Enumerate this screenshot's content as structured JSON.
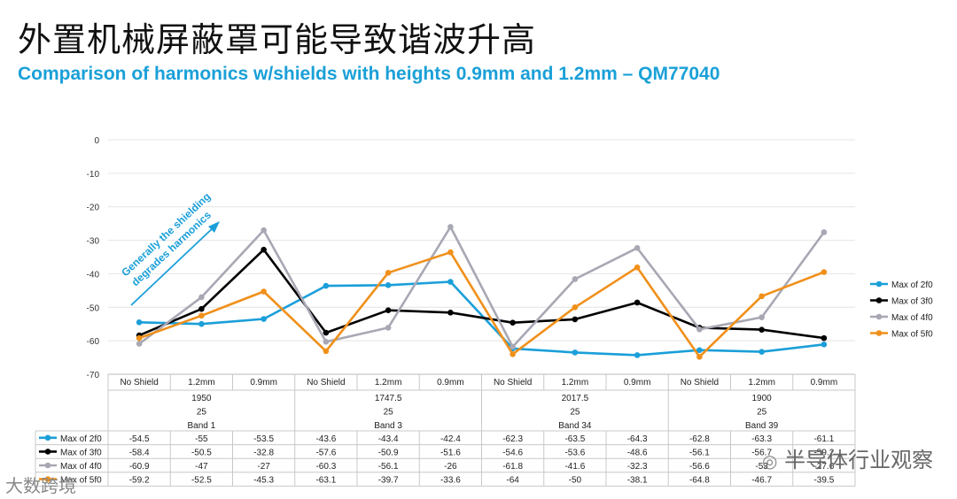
{
  "header": {
    "title": "外置机械屏蔽罩可能导致谐波升高",
    "subtitle": "Comparison of harmonics w/shields with heights 0.9mm and 1.2mm – QM77040"
  },
  "annotation": {
    "line1": "Generally the shielding",
    "line2": "degrades harmonics"
  },
  "watermarks": {
    "right": "半导体行业观察",
    "left": "大数跨境"
  },
  "chart_data": {
    "type": "line",
    "ylim": [
      -70,
      0
    ],
    "yticks": [
      0,
      -10,
      -20,
      -30,
      -40,
      -50,
      -60,
      -70
    ],
    "grid": true,
    "legend": "right",
    "categories": [
      "No Shield",
      "1.2mm",
      "0.9mm",
      "No Shield",
      "1.2mm",
      "0.9mm",
      "No Shield",
      "1.2mm",
      "0.9mm",
      "No Shield",
      "1.2mm",
      "0.9mm"
    ],
    "groups": [
      {
        "lines": [
          "1950",
          "25",
          "Band 1"
        ]
      },
      {
        "lines": [
          "1747.5",
          "25",
          "Band 3"
        ]
      },
      {
        "lines": [
          "2017.5",
          "25",
          "Band 34"
        ]
      },
      {
        "lines": [
          "1900",
          "25",
          "Band 39"
        ]
      }
    ],
    "series": [
      {
        "name": "Max of 2f0",
        "color": "#1a9fd9",
        "values": [
          -54.5,
          -55,
          -53.5,
          -43.6,
          -43.4,
          -42.4,
          -62.3,
          -63.5,
          -64.3,
          -62.8,
          -63.3,
          -61.1
        ]
      },
      {
        "name": "Max of 3f0",
        "color": "#000000",
        "values": [
          -58.4,
          -50.5,
          -32.8,
          -57.6,
          -50.9,
          -51.6,
          -54.6,
          -53.6,
          -48.6,
          -56.1,
          -56.7,
          -59.2
        ]
      },
      {
        "name": "Max of 4f0",
        "color": "#a8a8b4",
        "values": [
          -60.9,
          -47,
          -27,
          -60.3,
          -56.1,
          -26,
          -61.8,
          -41.6,
          -32.3,
          -56.6,
          -53,
          -27.6
        ]
      },
      {
        "name": "Max of 5f0",
        "color": "#f0901a",
        "values": [
          -59.2,
          -52.5,
          -45.3,
          -63.1,
          -39.7,
          -33.6,
          -64,
          -50,
          -38.1,
          -64.8,
          -46.7,
          -39.5
        ]
      }
    ],
    "table_labels": [
      [
        "-54.5",
        "-55",
        "-53.5",
        "-43.6",
        "-43.4",
        "-42.4",
        "-62.3",
        "-63.5",
        "-64.3",
        "-62.8",
        "-63.3",
        "-61.1"
      ],
      [
        "-58.4",
        "-50.5",
        "-32.8",
        "-57.6",
        "-50.9",
        "-51.6",
        "-54.6",
        "-53.6",
        "-48.6",
        "-56.1",
        "-56.7",
        "-59.2"
      ],
      [
        "-60.9",
        "-47",
        "-27",
        "-60.3",
        "-56.1",
        "-26",
        "-61.8",
        "-41.6",
        "-32.3",
        "-56.6",
        "-53",
        "-27.6"
      ],
      [
        "-59.2",
        "-52.5",
        "-45.3",
        "-63.1",
        "-39.7",
        "-33.6",
        "-64",
        "-50",
        "-38.1",
        "-64.8",
        "-46.7",
        "-39.5"
      ]
    ]
  }
}
